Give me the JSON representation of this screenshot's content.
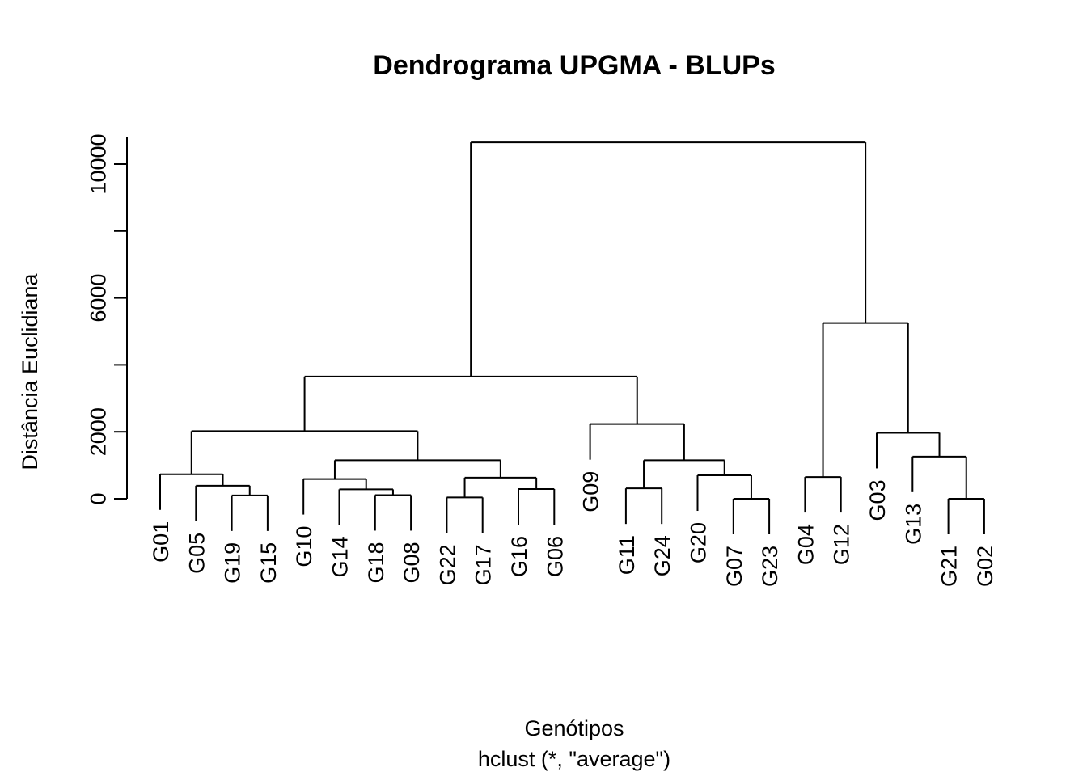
{
  "chart_data": {
    "type": "dendrogram",
    "title": "Dendrograma UPGMA - BLUPs",
    "xlabel": "Genótipos",
    "subtitle": "hclust (*, \"average\")",
    "ylabel": "Distância Euclidiana",
    "ylim": [
      0,
      10800
    ],
    "yticks": [
      0,
      2000,
      4000,
      6000,
      8000,
      10000
    ],
    "ytick_labels": [
      "0",
      "2000",
      "",
      "6000",
      "",
      "10000"
    ],
    "leaves": [
      "G01",
      "G05",
      "G19",
      "G15",
      "G10",
      "G14",
      "G18",
      "G08",
      "G22",
      "G17",
      "G16",
      "G06",
      "G09",
      "G11",
      "G24",
      "G20",
      "G07",
      "G23",
      "G04",
      "G12",
      "G03",
      "G13",
      "G21",
      "G02"
    ],
    "merges": [
      {
        "left": "G07",
        "right": "G23",
        "height": 0
      },
      {
        "left": "G21",
        "right": "G02",
        "height": 0
      },
      {
        "left": "G19",
        "right": "G15",
        "height": 100
      },
      {
        "left": "G18",
        "right": "G08",
        "height": 110
      },
      {
        "left": "G22",
        "right": "G17",
        "height": 40
      },
      {
        "left": "G16",
        "right": "G06",
        "height": 290
      },
      {
        "left": "G11",
        "right": "G24",
        "height": 310
      },
      {
        "left": "G04",
        "right": "G12",
        "height": 650
      },
      {
        "left": "G05",
        "right": 2,
        "height": 390
      },
      {
        "left": "G14",
        "right": 3,
        "height": 280
      },
      {
        "left": 4,
        "right": 5,
        "height": 630
      },
      {
        "left": "G20",
        "right": 0,
        "height": 700
      },
      {
        "left": "G13",
        "right": 1,
        "height": 1260
      },
      {
        "left": "G01",
        "right": 8,
        "height": 730
      },
      {
        "left": "G10",
        "right": 9,
        "height": 590
      },
      {
        "left": 14,
        "right": 10,
        "height": 1150
      },
      {
        "left": 11,
        "right": 6,
        "height": 1150
      },
      {
        "left": "G03",
        "right": 12,
        "height": 1970
      },
      {
        "left": 13,
        "right": 15,
        "height": 2020
      },
      {
        "left": "G09",
        "right": 16,
        "height": 2230
      },
      {
        "left": 18,
        "right": 19,
        "height": 3650
      },
      {
        "left": 7,
        "right": 17,
        "height": 5250
      },
      {
        "left": 20,
        "right": 21,
        "height": 10650
      }
    ],
    "leaf_line_bottom": 360
  }
}
